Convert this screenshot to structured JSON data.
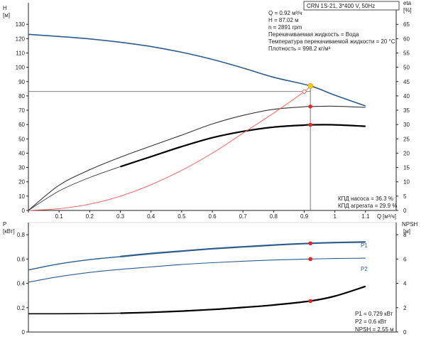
{
  "chart_data": [
    {
      "type": "line",
      "panel": "head-efficiency",
      "title": "CRN 1S-21, 3*400 V, 50Hz",
      "ylabel_left": "H",
      "ylabel_left_unit": "[м]",
      "ylabel_right": "eta",
      "ylabel_right_unit": "[%]",
      "xlabel": "Q",
      "xlabel_unit": "[м³/ч]",
      "x_ticks": [
        "0",
        "0.1",
        "0.2",
        "0.3",
        "0.4",
        "0.5",
        "0.6",
        "0.7",
        "0.8",
        "0.9",
        "1",
        "1.1"
      ],
      "y_left_ticks": [
        "0",
        "10",
        "20",
        "30",
        "40",
        "50",
        "60",
        "70",
        "80",
        "90",
        "100",
        "110",
        "120",
        "130"
      ],
      "y_right_ticks": [
        "0",
        "5",
        "10",
        "15",
        "20",
        "25",
        "30",
        "35",
        "40",
        "45",
        "50",
        "55",
        "60",
        "65"
      ],
      "xlim": [
        0,
        1.2
      ],
      "ylim_left": [
        0,
        145
      ],
      "ylim_right": [
        0,
        72.5
      ],
      "grid": false,
      "info_lines": [
        "Q = 0.92 м³/ч",
        "H = 87.02 м",
        "n = 2891 rpm",
        "Перекачиваемая жидкость = Вода",
        "Температура перекачиваемой жидкости = 20 °C",
        "Плотность = 998.2 кг/м³"
      ],
      "efficiency_lines": [
        "КПД насоса = 36.3 %",
        "КПД агрегата = 29.9 %"
      ],
      "duty_point": {
        "q": 0.92,
        "h": 87.02,
        "color": "#ffcc00"
      },
      "series": [
        {
          "role": "head",
          "color": "#2c5c8c",
          "x": [
            0,
            0.1,
            0.2,
            0.3,
            0.4,
            0.5,
            0.6,
            0.7,
            0.8,
            0.92,
            1.0,
            1.1
          ],
          "y": [
            123,
            121.5,
            119.8,
            117.5,
            114.5,
            110.5,
            105.5,
            99.5,
            93,
            87,
            80.5,
            73
          ]
        },
        {
          "role": "pump-efficiency",
          "color": "#333333",
          "x": [
            0,
            0.1,
            0.2,
            0.3,
            0.4,
            0.5,
            0.6,
            0.7,
            0.8,
            0.9,
            0.92,
            1.0,
            1.1
          ],
          "y": [
            0,
            8.8,
            14.2,
            18.6,
            22.5,
            26.3,
            30.2,
            33.2,
            35.3,
            36.2,
            36.3,
            36.4,
            36
          ]
        },
        {
          "role": "unit-efficiency",
          "color": "#000000",
          "x": [
            0.3,
            0.4,
            0.5,
            0.6,
            0.7,
            0.8,
            0.9,
            0.92,
            1.0,
            1.1
          ],
          "y": [
            15.3,
            18.8,
            22.3,
            25.4,
            27.6,
            29.1,
            29.8,
            29.9,
            29.9,
            29.4
          ]
        },
        {
          "role": "system-curve",
          "color": "#ff5555",
          "x": [
            0,
            0.1,
            0.2,
            0.3,
            0.4,
            0.5,
            0.6,
            0.7,
            0.8,
            0.9,
            0.92
          ],
          "y": [
            0,
            1.2,
            4.4,
            10,
            18,
            28,
            40,
            54,
            68,
            83,
            87
          ]
        }
      ],
      "markers": [
        {
          "x": 0.92,
          "y": 36.3,
          "axis": "right",
          "color": "#ee2222"
        },
        {
          "x": 0.92,
          "y": 29.9,
          "axis": "right",
          "color": "#ee2222"
        },
        {
          "x": 0.92,
          "y": 87.02,
          "axis": "left",
          "color": "#ffcc00"
        }
      ]
    },
    {
      "type": "line",
      "panel": "power-npsh",
      "ylabel_left": "P",
      "ylabel_left_unit": "[кВт]",
      "ylabel_right": "NPSH",
      "ylabel_right_unit": "[м]",
      "y_left_ticks": [
        "0",
        "0.2",
        "0.4",
        "0.6",
        "0.8"
      ],
      "y_right_ticks": [
        "0",
        "2",
        "4",
        "6",
        "8"
      ],
      "xlim": [
        0,
        1.2
      ],
      "ylim_left": [
        0,
        0.9
      ],
      "ylim_right": [
        0,
        9
      ],
      "grid": false,
      "info_lines": [
        "P1 = 0.729 кВт",
        "P2 = 0.6 кВт",
        "NPSH = 2.55 м"
      ],
      "series": [
        {
          "name": "P1",
          "color": "#2c5c8c",
          "x": [
            0,
            0.1,
            0.2,
            0.3,
            0.4,
            0.5,
            0.6,
            0.7,
            0.8,
            0.92,
            1.0,
            1.1
          ],
          "y": [
            0.51,
            0.56,
            0.595,
            0.62,
            0.645,
            0.665,
            0.685,
            0.7,
            0.715,
            0.729,
            0.735,
            0.74
          ]
        },
        {
          "name": "P2",
          "color": "#2c5c8c",
          "x": [
            0,
            0.1,
            0.2,
            0.3,
            0.4,
            0.5,
            0.6,
            0.7,
            0.8,
            0.92,
            1.0,
            1.1
          ],
          "y": [
            0.41,
            0.455,
            0.49,
            0.515,
            0.535,
            0.555,
            0.57,
            0.582,
            0.592,
            0.6,
            0.604,
            0.607
          ]
        },
        {
          "role": "npsh",
          "axis": "right",
          "color": "#000000",
          "x": [
            0,
            0.1,
            0.2,
            0.3,
            0.4,
            0.5,
            0.6,
            0.7,
            0.8,
            0.92,
            1.0,
            1.1
          ],
          "y": [
            1.5,
            1.5,
            1.52,
            1.55,
            1.62,
            1.72,
            1.85,
            2.02,
            2.22,
            2.55,
            2.95,
            3.75
          ]
        }
      ],
      "markers": [
        {
          "x": 0.92,
          "y": 0.729,
          "axis": "left",
          "color": "#ee2222"
        },
        {
          "x": 0.92,
          "y": 0.6,
          "axis": "left",
          "color": "#ee2222"
        },
        {
          "x": 0.92,
          "y": 2.55,
          "axis": "right",
          "color": "#ee2222"
        }
      ]
    }
  ]
}
